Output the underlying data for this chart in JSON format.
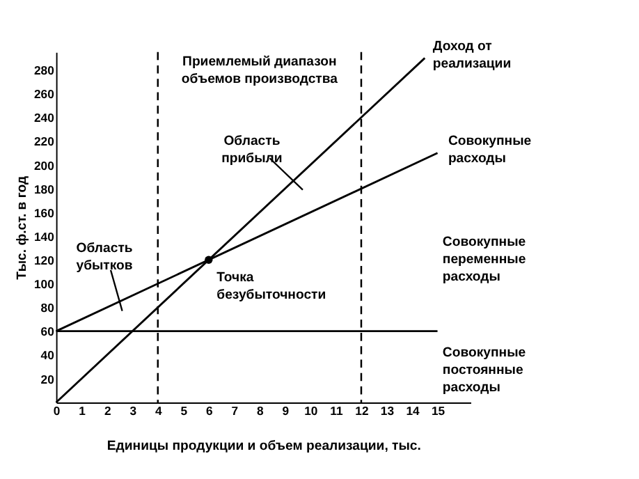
{
  "chart_data": {
    "type": "line",
    "xlabel": "Единицы продукции и объем реализации, тыс.",
    "ylabel": "Тыс. ф.ст. в год",
    "xlim": [
      0,
      16.3
    ],
    "ylim": [
      0,
      295
    ],
    "xticks": [
      0,
      1,
      2,
      3,
      4,
      5,
      6,
      7,
      8,
      9,
      10,
      11,
      12,
      13,
      14,
      15
    ],
    "yticks": [
      20,
      40,
      60,
      80,
      100,
      120,
      140,
      160,
      180,
      200,
      220,
      240,
      260,
      280
    ],
    "grid": false,
    "line_style": "solid",
    "series": [
      {
        "color": "#000000",
        "x": [
          0,
          14.5
        ],
        "values": [
          0,
          290
        ]
      },
      {
        "color": "#000000",
        "x": [
          0,
          15
        ],
        "values": [
          60,
          210
        ]
      },
      {
        "color": "#000000",
        "x": [
          0,
          15
        ],
        "values": [
          60,
          60
        ]
      },
      {
        "type": "scatter",
        "marker": "circle",
        "color": "#000000",
        "x": [
          6
        ],
        "values": [
          120
        ]
      }
    ],
    "ref_lines": [
      {
        "axis": "x",
        "value": 4,
        "line_style": "dashed"
      },
      {
        "axis": "x",
        "value": 12,
        "line_style": "dashed"
      }
    ],
    "annotations": [
      {
        "text": "Доход от реализации",
        "x": 14.5,
        "y": 290
      },
      {
        "text": "Совокупные расходы",
        "x": 15,
        "y": 210
      },
      "Совокупные переменные расходы",
      "Совокупные постоянные расходы",
      "Область прибыли",
      "Область убытков",
      {
        "text": "Точка безубыточности",
        "x": 6,
        "y": 120
      },
      "Приемлемый диапазон объемов производства"
    ]
  }
}
